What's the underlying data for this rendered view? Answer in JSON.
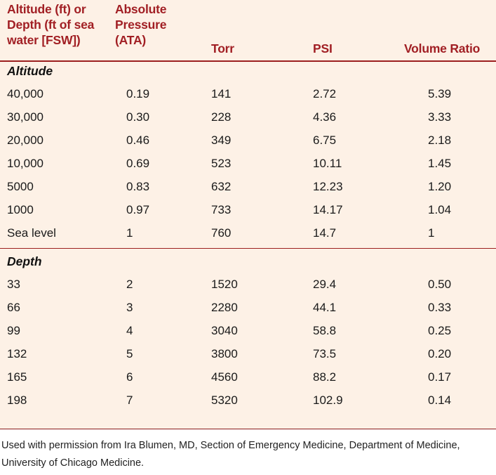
{
  "headers": [
    "Altitude (ft) or Depth (ft of sea water [FSW])",
    "Absolute Pressure (ATA)",
    "Torr",
    "PSI",
    "Volume Ratio"
  ],
  "sections": [
    {
      "title": "Altitude",
      "rows": [
        [
          "40,000",
          "0.19",
          "141",
          "2.72",
          "5.39"
        ],
        [
          "30,000",
          "0.30",
          "228",
          "4.36",
          "3.33"
        ],
        [
          "20,000",
          "0.46",
          "349",
          "6.75",
          "2.18"
        ],
        [
          "10,000",
          "0.69",
          "523",
          "10.11",
          "1.45"
        ],
        [
          "5000",
          "0.83",
          "632",
          "12.23",
          "1.20"
        ],
        [
          "1000",
          "0.97",
          "733",
          "14.17",
          "1.04"
        ],
        [
          "Sea level",
          "1",
          "760",
          "14.7",
          "1"
        ]
      ]
    },
    {
      "title": "Depth",
      "rows": [
        [
          "33",
          "2",
          "1520",
          "29.4",
          "0.50"
        ],
        [
          "66",
          "3",
          "2280",
          "44.1",
          "0.33"
        ],
        [
          "99",
          "4",
          "3040",
          "58.8",
          "0.25"
        ],
        [
          "132",
          "5",
          "3800",
          "73.5",
          "0.20"
        ],
        [
          "165",
          "6",
          "4560",
          "88.2",
          "0.17"
        ],
        [
          "198",
          "7",
          "5320",
          "102.9",
          "0.14"
        ]
      ]
    }
  ],
  "footnote": "Used with permission from Ira Blumen, MD, Section of Emergency Medicine, Department of Medicine, University of Chicago Medicine."
}
